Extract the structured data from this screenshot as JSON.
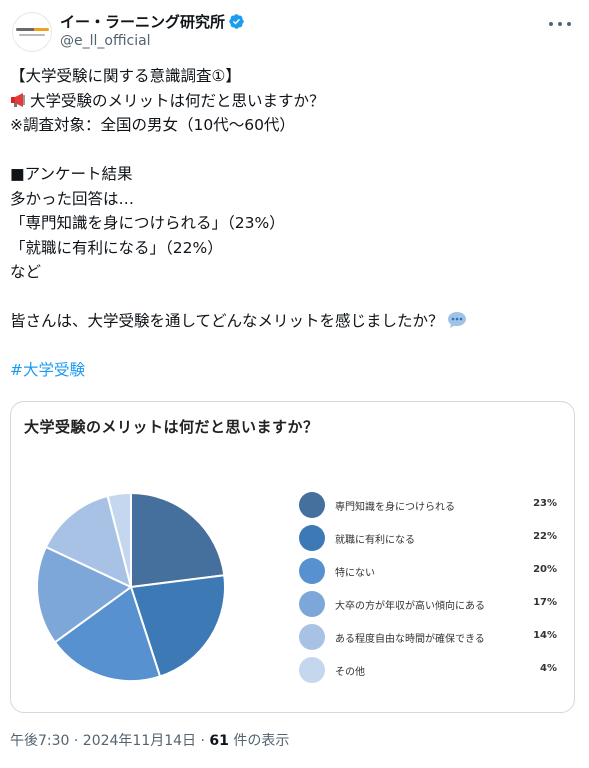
{
  "account": {
    "name": "イー・ラーニング研究所",
    "handle": "@e_ll_official"
  },
  "tweet": {
    "lines": [
      "【大学受験に関する意識調査①】",
      "大学受験のメリットは何だと思いますか？",
      "※調査対象：全国の男女（10代〜60代）",
      "",
      "■アンケート結果",
      "多かった回答は…",
      "「専門知識を身につけられる」（23%）",
      "「就職に有利になる」（22%）",
      "など",
      "",
      "皆さんは、大学受験を通してどんなメリットを感じましたか？",
      "",
      "#大学受験"
    ]
  },
  "meta": {
    "time": "午後7:30 · 2024年11月14日 · ",
    "views": "61",
    "views_suffix": " 件の表示"
  },
  "chart_data": {
    "type": "pie",
    "title": "大学受験のメリットは何だと思いますか？",
    "categories": [
      "専門知識を身につけられる",
      "就職に有利になる",
      "特にない",
      "大卒の方が年収が高い傾向にある",
      "ある程度自由な時間が確保できる",
      "その他"
    ],
    "values": [
      23,
      22,
      20,
      17,
      14,
      4
    ],
    "value_labels": [
      "23%",
      "22%",
      "20%",
      "17%",
      "14%",
      "4%"
    ],
    "colors": [
      "#456f9c",
      "#3d79b5",
      "#5891cf",
      "#7ea7d9",
      "#a8c2e6",
      "#c5d6ef"
    ],
    "legend": "right"
  }
}
